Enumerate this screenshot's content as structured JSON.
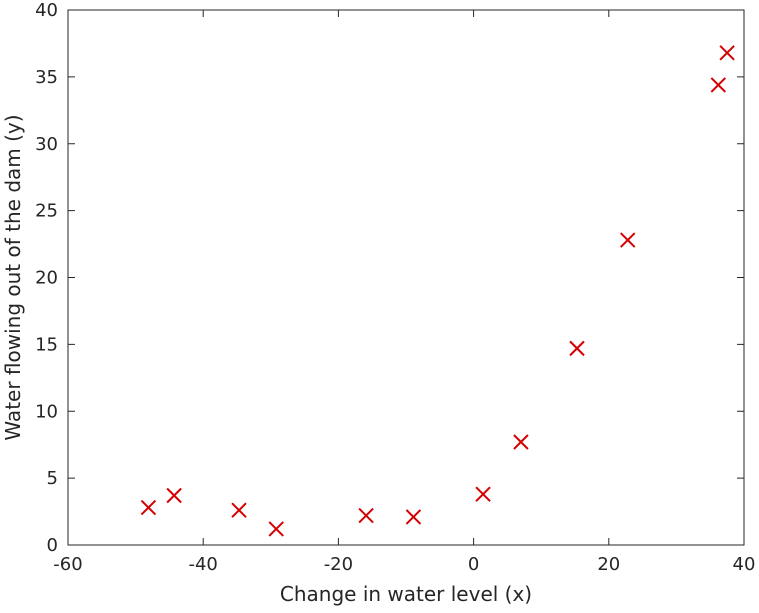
{
  "chart_data": {
    "type": "scatter",
    "title": "",
    "xlabel": "Change in water level (x)",
    "ylabel": "Water flowing out of the dam (y)",
    "xlim": [
      -60,
      40
    ],
    "ylim": [
      0,
      40
    ],
    "xticks": [
      -60,
      -40,
      -20,
      0,
      20,
      40
    ],
    "yticks": [
      0,
      5,
      10,
      15,
      20,
      25,
      30,
      35,
      40
    ],
    "grid": false,
    "legend": false,
    "marker": "x",
    "marker_color": "#d40000",
    "series": [
      {
        "points": [
          {
            "x": -48.1,
            "y": 2.8
          },
          {
            "x": -44.3,
            "y": 3.7
          },
          {
            "x": -34.7,
            "y": 2.6
          },
          {
            "x": -29.2,
            "y": 1.2
          },
          {
            "x": -15.9,
            "y": 2.2
          },
          {
            "x": -8.9,
            "y": 2.1
          },
          {
            "x": 1.4,
            "y": 3.8
          },
          {
            "x": 7.0,
            "y": 7.7
          },
          {
            "x": 15.3,
            "y": 14.7
          },
          {
            "x": 22.8,
            "y": 22.8
          },
          {
            "x": 36.2,
            "y": 34.4
          },
          {
            "x": 37.5,
            "y": 36.8
          }
        ]
      }
    ]
  }
}
